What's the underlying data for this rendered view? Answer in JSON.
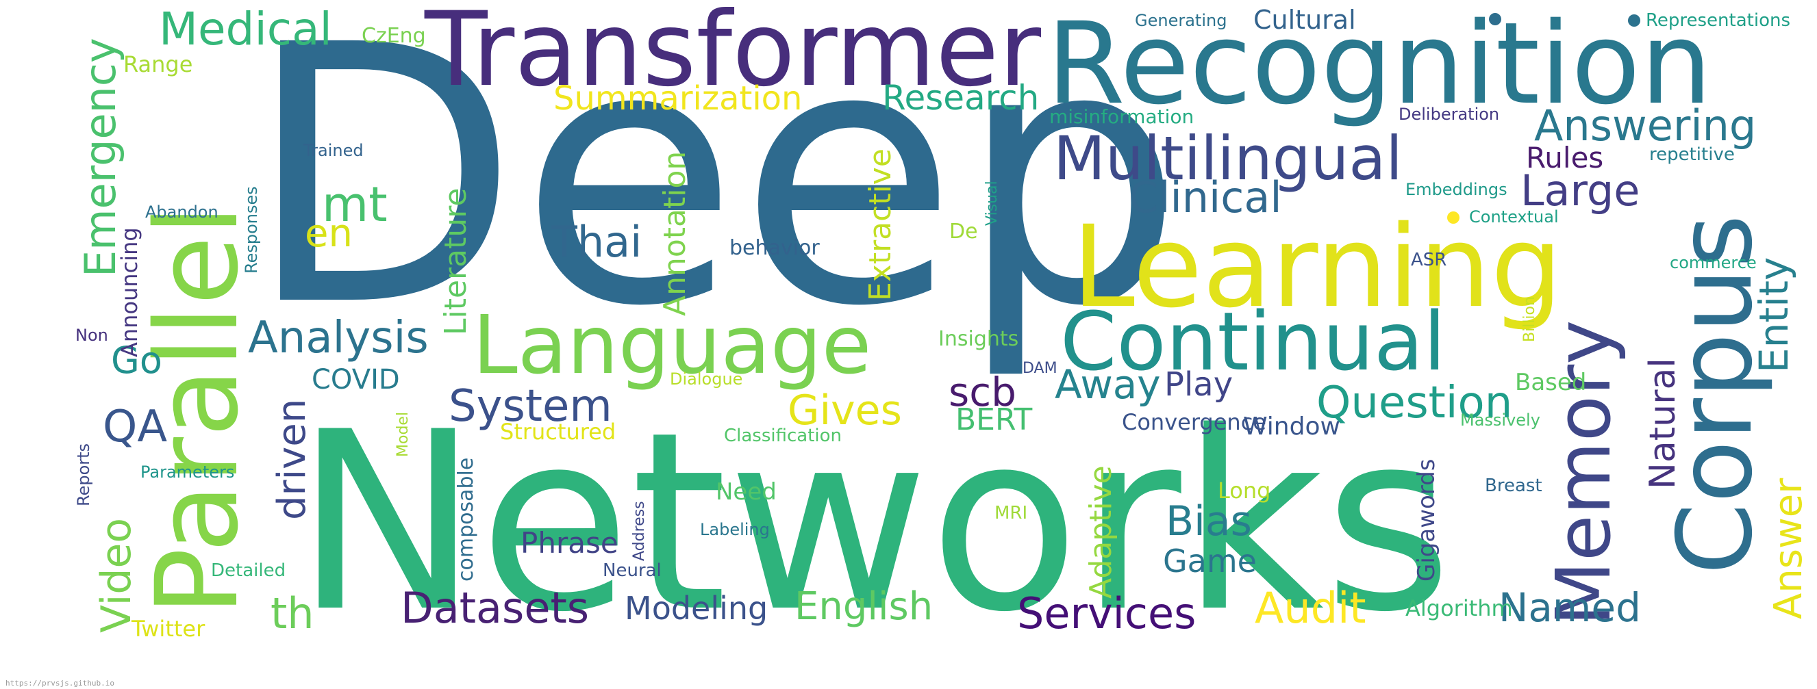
{
  "words": [
    {
      "text": "Deep",
      "color": "#2e6a8e",
      "rotate": false
    },
    {
      "text": "Networks",
      "color": "#2eb37c",
      "rotate": false
    },
    {
      "text": "Transformer",
      "color": "#472e7c",
      "rotate": false
    },
    {
      "text": "Recognition",
      "color": "#29788e",
      "rotate": false
    },
    {
      "text": "Learning",
      "color": "#e1e21a",
      "rotate": false
    },
    {
      "text": "Parallel",
      "color": "#86d549",
      "rotate": true
    },
    {
      "text": "Corpus",
      "color": "#2e6e8e",
      "rotate": true
    },
    {
      "text": "Memory",
      "color": "#3f4788",
      "rotate": true
    },
    {
      "text": "Language",
      "color": "#7ad151",
      "rotate": false
    },
    {
      "text": "Continual",
      "color": "#21918c",
      "rotate": false
    },
    {
      "text": "Multilingual",
      "color": "#3e4a89",
      "rotate": false
    },
    {
      "text": "Medical",
      "color": "#35b779",
      "rotate": false
    },
    {
      "text": "Answering",
      "color": "#2a788e",
      "rotate": false
    },
    {
      "text": "Clinical",
      "color": "#31688e",
      "rotate": false
    },
    {
      "text": "Large",
      "color": "#433e85",
      "rotate": false
    },
    {
      "text": "Emergency",
      "color": "#4ac16d",
      "rotate": true
    },
    {
      "text": "Summarization",
      "color": "#f1e51d",
      "rotate": false
    },
    {
      "text": "Research",
      "color": "#23a983",
      "rotate": false
    },
    {
      "text": "Analysis",
      "color": "#2c738e",
      "rotate": false
    },
    {
      "text": "System",
      "color": "#3b518b",
      "rotate": false
    },
    {
      "text": "Question",
      "color": "#1f9e89",
      "rotate": false
    },
    {
      "text": "Datasets",
      "color": "#482173",
      "rotate": false
    },
    {
      "text": "Services",
      "color": "#440f76",
      "rotate": false
    },
    {
      "text": "Modeling",
      "color": "#3b528b",
      "rotate": false
    },
    {
      "text": "English",
      "color": "#5ec962",
      "rotate": false
    },
    {
      "text": "Audit",
      "color": "#fde725",
      "rotate": false
    },
    {
      "text": "Named",
      "color": "#2c728e",
      "rotate": false
    },
    {
      "text": "Thai",
      "color": "#31678e",
      "rotate": false
    },
    {
      "text": "mt",
      "color": "#48c16e",
      "rotate": false
    },
    {
      "text": "en",
      "color": "#d8e219",
      "rotate": false
    },
    {
      "text": "QA",
      "color": "#39568c",
      "rotate": false
    },
    {
      "text": "Go",
      "color": "#21908d",
      "rotate": false
    },
    {
      "text": "th",
      "color": "#6ccd5a",
      "rotate": false
    },
    {
      "text": "Video",
      "color": "#7ad151",
      "rotate": true
    },
    {
      "text": "driven",
      "color": "#3e4989",
      "rotate": true
    },
    {
      "text": "Gives",
      "color": "#e5e419",
      "rotate": false
    },
    {
      "text": "BERT",
      "color": "#44bf70",
      "rotate": false
    },
    {
      "text": "scb",
      "color": "#481b6d",
      "rotate": false
    },
    {
      "text": "Away",
      "color": "#25838e",
      "rotate": false
    },
    {
      "text": "Play",
      "color": "#404588",
      "rotate": false
    },
    {
      "text": "Bias",
      "color": "#287d8e",
      "rotate": false
    },
    {
      "text": "Game",
      "color": "#2b758e",
      "rotate": false
    },
    {
      "text": "Phrase",
      "color": "#414487",
      "rotate": false
    },
    {
      "text": "Entity",
      "color": "#27808e",
      "rotate": true
    },
    {
      "text": "Natural",
      "color": "#46337e",
      "rotate": true
    },
    {
      "text": "Answer",
      "color": "#e8e419",
      "rotate": true
    },
    {
      "text": "Adaptive",
      "color": "#95d840",
      "rotate": true
    },
    {
      "text": "Literature",
      "color": "#5ec962",
      "rotate": true
    },
    {
      "text": "Annotation",
      "color": "#7fd34e",
      "rotate": true
    },
    {
      "text": "Extractive",
      "color": "#c2df23",
      "rotate": true
    },
    {
      "text": "Rules",
      "color": "#4a1c6e",
      "rotate": false
    },
    {
      "text": "Cultural",
      "color": "#33638d",
      "rotate": false
    },
    {
      "text": "COVID",
      "color": "#287c8e",
      "rotate": false
    },
    {
      "text": "Window",
      "color": "#39558c",
      "rotate": false
    },
    {
      "text": "Convergence",
      "color": "#3a538b",
      "rotate": false
    },
    {
      "text": "Structured",
      "color": "#e2e418",
      "rotate": false
    },
    {
      "text": "Need",
      "color": "#52c569",
      "rotate": false
    },
    {
      "text": "Long",
      "color": "#b5de2b",
      "rotate": false
    },
    {
      "text": "Twitter",
      "color": "#dde318",
      "rotate": false
    },
    {
      "text": "Based",
      "color": "#5ec962",
      "rotate": false
    },
    {
      "text": "Algorithm",
      "color": "#3aba76",
      "rotate": false
    },
    {
      "text": "Gigawords",
      "color": "#3f4889",
      "rotate": true
    },
    {
      "text": "Announcing",
      "color": "#453781",
      "rotate": true
    },
    {
      "text": "composable",
      "color": "#2f6c8e",
      "rotate": true
    },
    {
      "text": "CzEng",
      "color": "#7ad151",
      "rotate": false
    },
    {
      "text": "Range",
      "color": "#a8db34",
      "rotate": false
    },
    {
      "text": "Generating",
      "color": "#2c728e",
      "rotate": false
    },
    {
      "text": "Representations",
      "color": "#1fa088",
      "rotate": false
    },
    {
      "text": "misinformation",
      "color": "#25ac82",
      "rotate": false
    },
    {
      "text": "Deliberation",
      "color": "#443983",
      "rotate": false
    },
    {
      "text": "repetitive",
      "color": "#277f8e",
      "rotate": false
    },
    {
      "text": "Embeddings",
      "color": "#1f9a8a",
      "rotate": false
    },
    {
      "text": "Contextual",
      "color": "#1fa187",
      "rotate": false
    },
    {
      "text": "behavior",
      "color": "#33628d",
      "rotate": false
    },
    {
      "text": "De",
      "color": "#a0da39",
      "rotate": false
    },
    {
      "text": "ASR",
      "color": "#3b528b",
      "rotate": false
    },
    {
      "text": "commerce",
      "color": "#22a785",
      "rotate": false
    },
    {
      "text": "Insights",
      "color": "#6ccd5a",
      "rotate": false
    },
    {
      "text": "Dialogue",
      "color": "#b8de29",
      "rotate": false
    },
    {
      "text": "DAM",
      "color": "#3d4d8a",
      "rotate": false
    },
    {
      "text": "Classification",
      "color": "#52c569",
      "rotate": false
    },
    {
      "text": "Massively",
      "color": "#4ac16d",
      "rotate": false
    },
    {
      "text": "Breast",
      "color": "#31688e",
      "rotate": false
    },
    {
      "text": "MRI",
      "color": "#a0da39",
      "rotate": false
    },
    {
      "text": "Labeling",
      "color": "#2a768e",
      "rotate": false
    },
    {
      "text": "Neural",
      "color": "#3b528b",
      "rotate": false
    },
    {
      "text": "Detailed",
      "color": "#35b779",
      "rotate": false
    },
    {
      "text": "Parameters",
      "color": "#1f958b",
      "rotate": false
    },
    {
      "text": "Trained",
      "color": "#33638d",
      "rotate": false
    },
    {
      "text": "Abandon",
      "color": "#2d708e",
      "rotate": false
    },
    {
      "text": "Non",
      "color": "#46327e",
      "rotate": false
    },
    {
      "text": "Reports",
      "color": "#3e4a89",
      "rotate": true
    },
    {
      "text": "Model",
      "color": "#a8db34",
      "rotate": true
    },
    {
      "text": "Responses",
      "color": "#277e8e",
      "rotate": true
    },
    {
      "text": "Visual",
      "color": "#1fa088",
      "rotate": true
    },
    {
      "text": "Billion",
      "color": "#c5e021",
      "rotate": true
    },
    {
      "text": "Address",
      "color": "#3f4889",
      "rotate": true
    }
  ],
  "dots": [
    {
      "color": "#2e6e8e"
    },
    {
      "color": "#2c728e"
    },
    {
      "color": "#fde725"
    }
  ],
  "footer": {
    "url": "https://prvsjs.github.io"
  }
}
